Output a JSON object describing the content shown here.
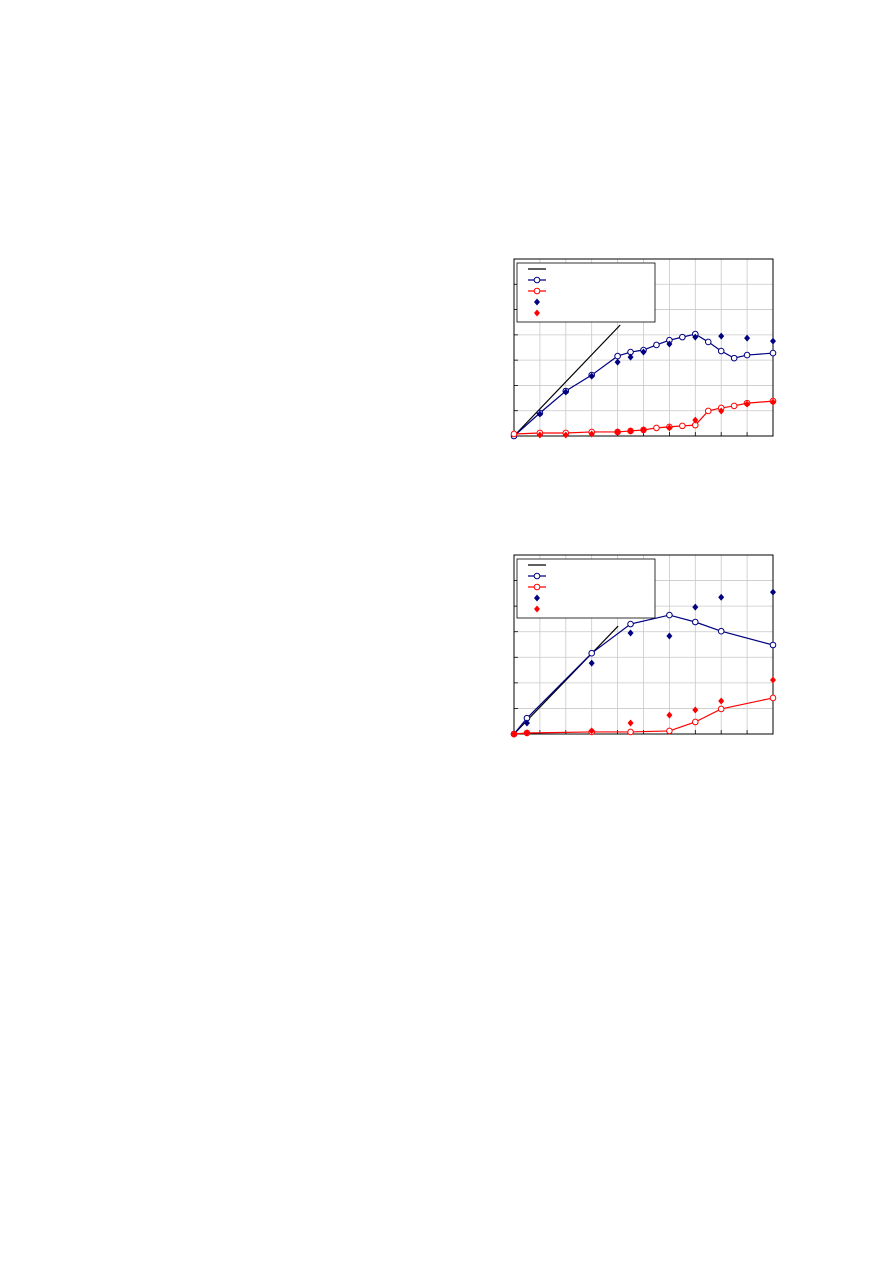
{
  "chart_data": [
    {
      "type": "line",
      "xlim": [
        0,
        10
      ],
      "xticks": [
        0,
        1,
        2,
        3,
        4,
        5,
        6,
        7,
        8,
        9,
        10
      ],
      "ylim": [
        0,
        7
      ],
      "yticks": [
        0,
        1,
        2,
        3,
        4,
        5,
        6,
        7
      ],
      "grid": true,
      "legend": "upper-left",
      "series": [
        {
          "color": "#000000",
          "marker": "none",
          "line": true,
          "x": [
            0,
            4.1
          ],
          "values": [
            0,
            4.39
          ]
        },
        {
          "color": "#000080",
          "marker": "circle",
          "line": true,
          "x": [
            0,
            1,
            2,
            3,
            4,
            4.5,
            5,
            5.5,
            6,
            6.5,
            7,
            7.5,
            8,
            8.5,
            9,
            10
          ],
          "values": [
            0,
            0.91,
            1.78,
            2.41,
            3.16,
            3.32,
            3.4,
            3.6,
            3.79,
            3.91,
            4.03,
            3.72,
            3.36,
            3.08,
            3.2,
            3.28
          ]
        },
        {
          "color": "#ff0000",
          "marker": "circle",
          "line": true,
          "x": [
            0,
            1,
            2,
            3,
            4,
            4.5,
            5,
            5.5,
            6,
            6.5,
            7,
            7.5,
            8,
            8.5,
            9,
            10
          ],
          "values": [
            0.08,
            0.12,
            0.12,
            0.16,
            0.16,
            0.2,
            0.24,
            0.32,
            0.36,
            0.4,
            0.43,
            0.99,
            1.11,
            1.19,
            1.3,
            1.38
          ]
        },
        {
          "color": "#000080",
          "marker": "diamond",
          "line": false,
          "x": [
            1,
            2,
            3,
            4,
            4.5,
            5,
            6,
            7,
            8,
            9,
            10
          ],
          "values": [
            0.87,
            1.74,
            2.37,
            2.92,
            3.12,
            3.32,
            3.64,
            3.91,
            3.95,
            3.87,
            3.75
          ]
        },
        {
          "color": "#ff0000",
          "marker": "diamond",
          "line": false,
          "x": [
            1,
            2,
            3,
            4,
            4.5,
            5,
            6,
            7,
            8,
            9,
            10
          ],
          "values": [
            0.04,
            0.04,
            0.08,
            0.16,
            0.2,
            0.24,
            0.32,
            0.63,
            0.99,
            1.26,
            1.34
          ]
        }
      ]
    },
    {
      "type": "line",
      "xlim": [
        0,
        10
      ],
      "xticks": [
        0,
        1,
        2,
        3,
        4,
        5,
        6,
        7,
        8,
        9,
        10
      ],
      "ylim": [
        0,
        7
      ],
      "yticks": [
        0,
        1,
        2,
        3,
        4,
        5,
        6,
        7
      ],
      "grid": true,
      "legend": "upper-left",
      "series": [
        {
          "color": "#000000",
          "marker": "none",
          "line": true,
          "x": [
            0,
            4.02
          ],
          "values": [
            0,
            4.22
          ]
        },
        {
          "color": "#000080",
          "marker": "circle",
          "line": true,
          "x": [
            0,
            0.5,
            3,
            4.5,
            6,
            7,
            8,
            10
          ],
          "values": [
            0,
            0.62,
            3.16,
            4.3,
            4.65,
            4.38,
            4.02,
            3.48
          ]
        },
        {
          "color": "#ff0000",
          "marker": "circle",
          "line": true,
          "x": [
            0,
            0.5,
            3,
            4.5,
            6,
            7,
            8,
            10
          ],
          "values": [
            0,
            0.04,
            0.08,
            0.08,
            0.12,
            0.47,
            0.98,
            1.41
          ]
        },
        {
          "color": "#000080",
          "marker": "diamond",
          "line": false,
          "x": [
            0.5,
            3,
            4.5,
            6,
            7,
            8,
            10
          ],
          "values": [
            0.43,
            2.77,
            3.95,
            3.83,
            4.96,
            5.35,
            5.55
          ]
        },
        {
          "color": "#ff0000",
          "marker": "diamond",
          "line": false,
          "x": [
            0,
            0.5,
            3,
            4.5,
            6,
            7,
            8,
            10
          ],
          "values": [
            0,
            0.04,
            0.12,
            0.43,
            0.74,
            0.94,
            1.29,
            2.11
          ]
        }
      ]
    }
  ]
}
